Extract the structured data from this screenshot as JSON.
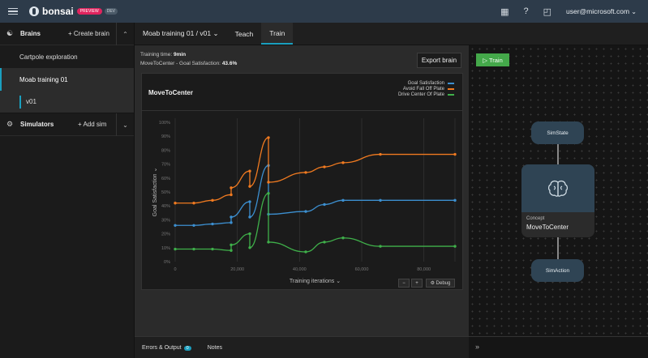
{
  "topbar": {
    "brand": "bonsai",
    "preview_badge": "PREVIEW",
    "version_badge": "DEV",
    "help": "?",
    "user": "user@microsoft.com"
  },
  "sidebar": {
    "brains_title": "Brains",
    "create_brain": "+ Create brain",
    "brains": [
      {
        "label": "Cartpole exploration"
      },
      {
        "label": "Moab training 01"
      }
    ],
    "version": "v01",
    "simulators_title": "Simulators",
    "add_sim": "+ Add sim"
  },
  "tabs": {
    "brain_selector": "Moab training 01 / v01 ⌄",
    "teach": "Teach",
    "train": "Train"
  },
  "training": {
    "time_label": "Training time:",
    "time_value": "9min",
    "satisfaction_label": "MoveToCenter - Goal Satisfaction:",
    "satisfaction_value": "43.6%",
    "export": "Export brain"
  },
  "chart_data": {
    "type": "line",
    "title": "MoveToCenter",
    "xlabel": "Training iterations",
    "ylabel": "Goal Satisfaction",
    "xlim": [
      0,
      90000
    ],
    "ylim": [
      0,
      100
    ],
    "x_ticks": [
      "0",
      "20,000",
      "40,000",
      "60,000",
      "80,000"
    ],
    "y_ticks": [
      "0%",
      "10%",
      "20%",
      "30%",
      "40%",
      "50%",
      "60%",
      "70%",
      "80%",
      "90%",
      "100%"
    ],
    "legend_position": "top-right",
    "series": [
      {
        "name": "Goal Satisfaction",
        "color": "#3c8fd0",
        "x": [
          0,
          6000,
          12000,
          18000,
          18000,
          24000,
          24000,
          30000,
          30000,
          42000,
          48000,
          54000,
          66000,
          90000
        ],
        "y": [
          26,
          26,
          27,
          28,
          32,
          43,
          32,
          69,
          34,
          36,
          41,
          44,
          44,
          44
        ]
      },
      {
        "name": "Avoid Fall Off Plate",
        "color": "#f07a20",
        "x": [
          0,
          6000,
          12000,
          18000,
          18000,
          24000,
          24000,
          30000,
          30000,
          42000,
          48000,
          54000,
          66000,
          90000
        ],
        "y": [
          42,
          42,
          44,
          48,
          53,
          65,
          54,
          89,
          57,
          64,
          68,
          71,
          77,
          77
        ]
      },
      {
        "name": "Drive Center Of Plate",
        "color": "#3fb04a",
        "x": [
          0,
          6000,
          12000,
          18000,
          18000,
          24000,
          24000,
          30000,
          30000,
          42000,
          48000,
          54000,
          66000,
          90000
        ],
        "y": [
          9,
          9,
          9,
          8,
          12,
          20,
          10,
          49,
          14,
          7,
          14,
          17,
          11,
          11
        ]
      }
    ]
  },
  "chart_controls": {
    "minus": "−",
    "plus": "+",
    "debug": "⚙ Debug"
  },
  "bottom": {
    "errors": "Errors & Output",
    "errors_count": "0",
    "notes": "Notes",
    "expand": "»"
  },
  "graph": {
    "train_button": "▷ Train",
    "sim_state": "SimState",
    "concept_kind": "Concept",
    "concept_name": "MoveToCenter",
    "sim_action": "SimAction"
  }
}
